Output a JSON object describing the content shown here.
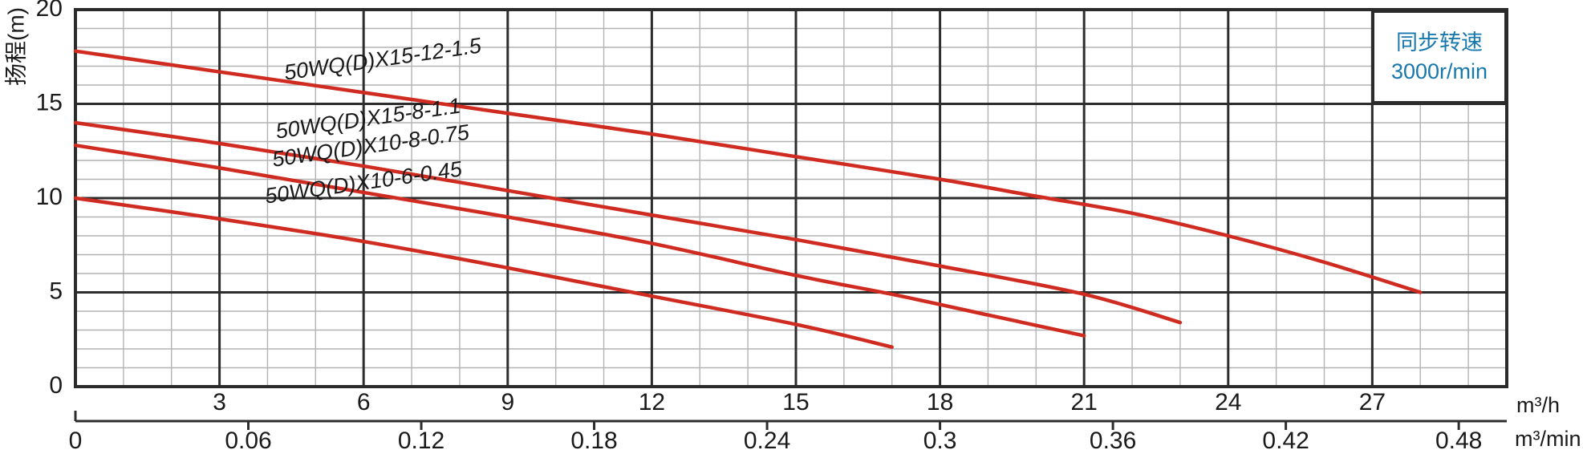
{
  "chart_data": {
    "type": "line",
    "title": "",
    "y_axis": {
      "label": "扬程(m)",
      "ticks": [
        0,
        5,
        10,
        15,
        20
      ],
      "range": [
        0,
        20
      ],
      "minor_step": 1,
      "major_step": 5
    },
    "x_axis_primary": {
      "unit": "m³/h",
      "ticks": [
        3,
        6,
        9,
        12,
        15,
        18,
        21,
        24,
        27
      ],
      "range": [
        0,
        29.8
      ],
      "minor_step": 1,
      "major_step": 3
    },
    "x_axis_secondary": {
      "unit": "m³/min",
      "tick_values": [
        0,
        0.06,
        0.12,
        0.18,
        0.24,
        0.3,
        0.36,
        0.42,
        0.48
      ],
      "tick_labels": [
        "0",
        "0.06",
        "0.12",
        "0.18",
        "0.24",
        "0.3",
        "0.36",
        "0.42",
        "0.48"
      ],
      "scale_to_primary": 60
    },
    "grid": true,
    "legend_position": "top-right",
    "series": [
      {
        "name": "50WQ(D)X15-12-1.5",
        "points": [
          [
            0,
            17.8
          ],
          [
            3,
            16.7
          ],
          [
            6,
            15.6
          ],
          [
            9,
            14.5
          ],
          [
            12,
            13.4
          ],
          [
            15,
            12.2
          ],
          [
            18,
            11.0
          ],
          [
            20,
            10.1
          ],
          [
            22,
            9.2
          ],
          [
            24,
            8.0
          ],
          [
            26,
            6.6
          ],
          [
            28,
            5.0
          ]
        ],
        "label_anchor": {
          "q": 6.4,
          "h": 17.3
        },
        "label_angle_deg": -8
      },
      {
        "name": "50WQ(D)X15-8-1.1",
        "points": [
          [
            0,
            14.0
          ],
          [
            3,
            12.9
          ],
          [
            6,
            11.7
          ],
          [
            9,
            10.4
          ],
          [
            12,
            9.1
          ],
          [
            15,
            7.8
          ],
          [
            18,
            6.4
          ],
          [
            21,
            4.9
          ],
          [
            23,
            3.4
          ]
        ],
        "label_anchor": {
          "q": 6.1,
          "h": 14.15
        },
        "label_angle_deg": -8
      },
      {
        "name": "50WQ(D)X10-8-0.75",
        "points": [
          [
            0,
            12.8
          ],
          [
            3,
            11.6
          ],
          [
            6,
            10.3
          ],
          [
            9,
            9.0
          ],
          [
            12,
            7.6
          ],
          [
            15,
            5.9
          ],
          [
            17,
            4.9
          ],
          [
            19,
            3.8
          ],
          [
            21,
            2.7
          ]
        ],
        "label_anchor": {
          "q": 6.15,
          "h": 12.7
        },
        "label_angle_deg": -8
      },
      {
        "name": "50WQ(D)X10-6-0.45",
        "points": [
          [
            0,
            10.0
          ],
          [
            3,
            8.9
          ],
          [
            6,
            7.7
          ],
          [
            9,
            6.3
          ],
          [
            12,
            4.8
          ],
          [
            15,
            3.3
          ],
          [
            17,
            2.1
          ]
        ],
        "label_anchor": {
          "q": 6.0,
          "h": 10.75
        },
        "label_angle_deg": -8
      }
    ],
    "annotation": {
      "line1": "同步转速",
      "line2": "3000r/min"
    }
  },
  "colors": {
    "curve": "#d02b20",
    "grid_major": "#2d2d2d",
    "grid_minor": "#b3b3b3",
    "border": "#2b2b2b",
    "text": "#1a1a1a",
    "annotation_blue": "#1878ad"
  }
}
